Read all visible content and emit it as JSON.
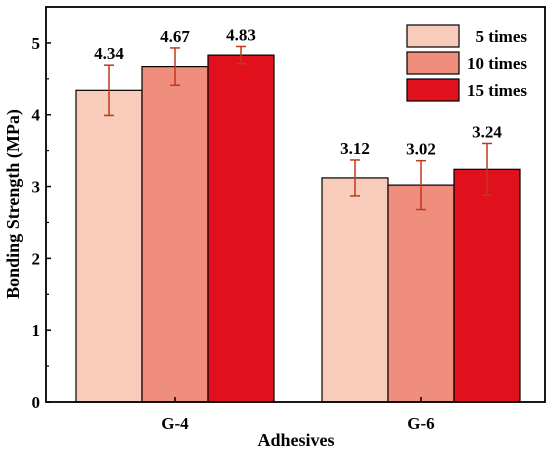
{
  "chart_data": {
    "type": "bar",
    "xlabel": "Adhesives",
    "ylabel": "Bonding Strength (MPa)",
    "ylim": [
      0,
      5.5
    ],
    "yticks": [
      "0",
      "1",
      "2",
      "3",
      "4",
      "5"
    ],
    "categories": [
      "G-4",
      "G-6"
    ],
    "series": [
      {
        "name": "5 times",
        "color": "#f9cbbb",
        "values": [
          4.34,
          3.12
        ],
        "errors": [
          0.35,
          0.25
        ],
        "labels": [
          "4.34",
          "3.12"
        ]
      },
      {
        "name": "10 times",
        "color": "#f08e7e",
        "values": [
          4.67,
          3.02
        ],
        "errors": [
          0.26,
          0.34
        ],
        "labels": [
          "4.67",
          "3.02"
        ]
      },
      {
        "name": "15 times",
        "color": "#e0101c",
        "values": [
          4.83,
          3.24
        ],
        "errors": [
          0.12,
          0.36
        ],
        "labels": [
          "4.83",
          "3.24"
        ]
      }
    ],
    "legend_position": "top-right",
    "grid": false
  }
}
